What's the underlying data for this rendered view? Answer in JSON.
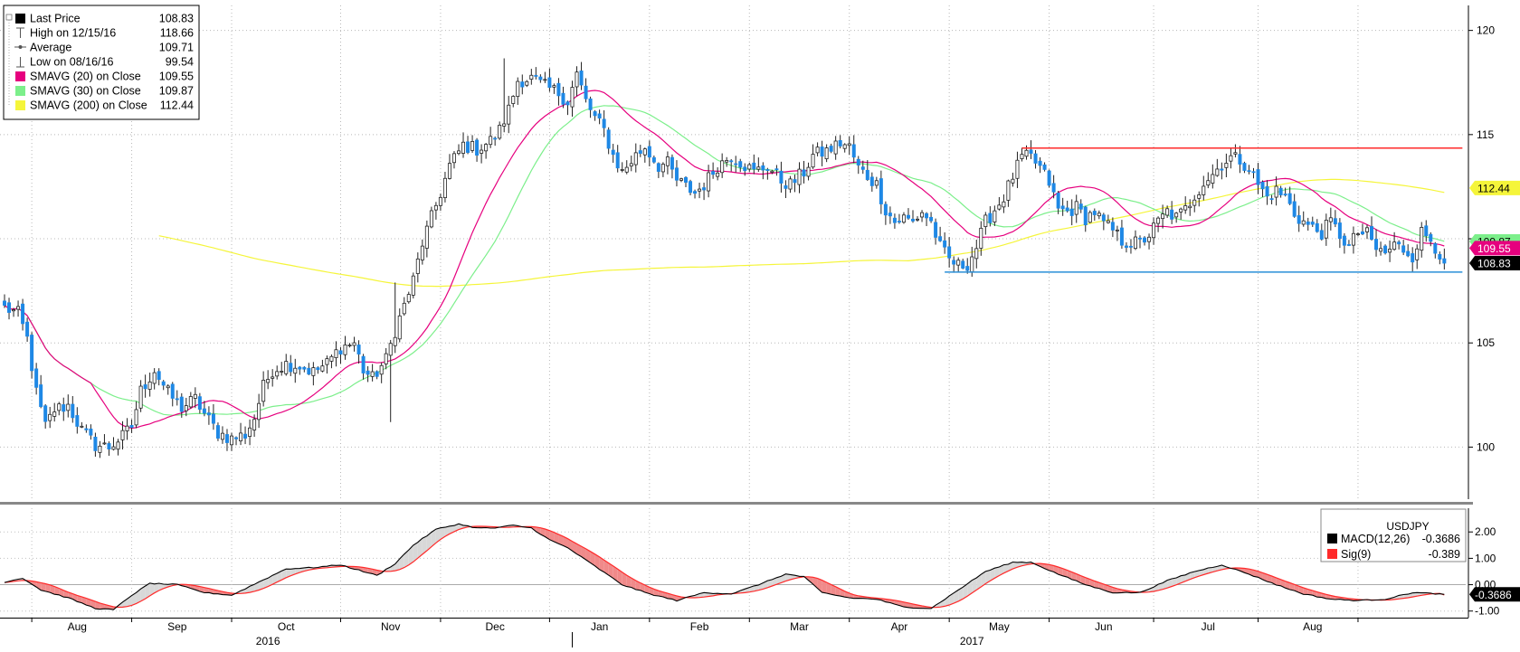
{
  "chart_data": [
    {
      "type": "candlestick",
      "title": "",
      "ylim": [
        97.5,
        121.2
      ],
      "y_ticks": [
        100,
        105,
        110,
        115,
        120
      ],
      "legend": {
        "placement": "top-left",
        "entries": [
          {
            "label": "Last Price",
            "value": "108.83",
            "color": "#000000",
            "marker": "square"
          },
          {
            "label": "High on 12/15/16",
            "value": "118.66",
            "color": "#555555",
            "marker": "high-tick"
          },
          {
            "label": "Average",
            "value": "109.71",
            "color": "#555555",
            "marker": "avg-line"
          },
          {
            "label": "Low on 08/16/16",
            "value": "99.54",
            "color": "#555555",
            "marker": "low-tick"
          },
          {
            "label": "SMAVG (20) on Close",
            "value": "109.55",
            "color": "#e6007e",
            "marker": "square"
          },
          {
            "label": "SMAVG (30) on Close",
            "value": "109.87",
            "color": "#7cef8b",
            "marker": "square"
          },
          {
            "label": "SMAVG (200) on Close",
            "value": "112.44",
            "color": "#f5f53a",
            "marker": "square"
          }
        ]
      },
      "right_labels": [
        {
          "text": "112.44",
          "value": 112.44,
          "color": "#f5f53a",
          "text_color": "#000000"
        },
        {
          "text": "109.87",
          "value": 109.87,
          "color": "#7cef8b",
          "text_color": "#000000"
        },
        {
          "text": "109.55",
          "value": 109.55,
          "color": "#e6007e",
          "text_color": "#ffffff"
        },
        {
          "text": "108.83",
          "value": 108.83,
          "color": "#000000",
          "text_color": "#ffffff"
        }
      ],
      "horizontal_lines": [
        {
          "start_index": 224,
          "end_index": 317,
          "value": 114.35,
          "color": "#ff2a2a"
        },
        {
          "start_index": 207,
          "end_index": 317,
          "value": 108.4,
          "color": "#2a8fd8"
        }
      ],
      "series": [
        {
          "kind": "ma",
          "period": 200,
          "color": "#f5f53a",
          "start_index": 34
        },
        {
          "kind": "ma",
          "period": 30,
          "color": "#7cef8b",
          "start_index": 0
        },
        {
          "kind": "ma",
          "period": 20,
          "color": "#e6007e",
          "start_index": 0
        }
      ],
      "anchors": [
        [
          0,
          106.7
        ],
        [
          3,
          106.4
        ],
        [
          5,
          105.2
        ],
        [
          7,
          102.6
        ],
        [
          9,
          101.0
        ],
        [
          11,
          101.8
        ],
        [
          14,
          102.0
        ],
        [
          17,
          100.8
        ],
        [
          20,
          100.1
        ],
        [
          23,
          100.0
        ],
        [
          26,
          100.5
        ],
        [
          28,
          101.0
        ],
        [
          30,
          102.7
        ],
        [
          33,
          103.7
        ],
        [
          36,
          102.6
        ],
        [
          39,
          101.9
        ],
        [
          42,
          102.3
        ],
        [
          44,
          101.6
        ],
        [
          47,
          100.7
        ],
        [
          50,
          100.4
        ],
        [
          53,
          100.6
        ],
        [
          55,
          101.4
        ],
        [
          57,
          102.9
        ],
        [
          59,
          103.7
        ],
        [
          62,
          104.0
        ],
        [
          65,
          103.9
        ],
        [
          68,
          103.6
        ],
        [
          71,
          104.0
        ],
        [
          74,
          104.8
        ],
        [
          77,
          105.0
        ],
        [
          79,
          103.7
        ],
        [
          81,
          103.3
        ],
        [
          84,
          104.2
        ],
        [
          86,
          105.6
        ],
        [
          88,
          106.8
        ],
        [
          90,
          108.0
        ],
        [
          92,
          109.8
        ],
        [
          94,
          111.0
        ],
        [
          96,
          112.2
        ],
        [
          98,
          113.5
        ],
        [
          101,
          114.5
        ],
        [
          104,
          114.3
        ],
        [
          107,
          114.7
        ],
        [
          109,
          115.2
        ],
        [
          111,
          116.2
        ],
        [
          113,
          117.6
        ],
        [
          116,
          117.7
        ],
        [
          119,
          117.3
        ],
        [
          122,
          117.0
        ],
        [
          124,
          116.6
        ],
        [
          126,
          117.9
        ],
        [
          128,
          116.6
        ],
        [
          130,
          115.8
        ],
        [
          132,
          115.2
        ],
        [
          134,
          114.0
        ],
        [
          136,
          113.2
        ],
        [
          139,
          114.0
        ],
        [
          141,
          114.4
        ],
        [
          144,
          113.5
        ],
        [
          146,
          113.6
        ],
        [
          148,
          112.8
        ],
        [
          150,
          112.5
        ],
        [
          152,
          112.2
        ],
        [
          154,
          112.6
        ],
        [
          157,
          113.5
        ],
        [
          160,
          114.0
        ],
        [
          162,
          113.7
        ],
        [
          165,
          113.2
        ],
        [
          168,
          113.5
        ],
        [
          171,
          112.8
        ],
        [
          173,
          112.6
        ],
        [
          176,
          113.2
        ],
        [
          178,
          114.0
        ],
        [
          181,
          114.2
        ],
        [
          184,
          114.6
        ],
        [
          186,
          114.4
        ],
        [
          188,
          113.4
        ],
        [
          190,
          113.0
        ],
        [
          192,
          112.6
        ],
        [
          194,
          111.4
        ],
        [
          196,
          110.8
        ],
        [
          198,
          111.0
        ],
        [
          200,
          110.8
        ],
        [
          202,
          111.3
        ],
        [
          204,
          110.8
        ],
        [
          206,
          109.6
        ],
        [
          208,
          109.0
        ],
        [
          210,
          108.7
        ],
        [
          212,
          108.8
        ],
        [
          214,
          109.6
        ],
        [
          216,
          110.8
        ],
        [
          218,
          111.4
        ],
        [
          220,
          112.0
        ],
        [
          222,
          113.0
        ],
        [
          224,
          113.9
        ],
        [
          226,
          113.9
        ],
        [
          228,
          113.4
        ],
        [
          230,
          112.7
        ],
        [
          232,
          111.4
        ],
        [
          234,
          111.3
        ],
        [
          236,
          111.5
        ],
        [
          238,
          111.0
        ],
        [
          240,
          111.3
        ],
        [
          242,
          110.7
        ],
        [
          244,
          110.4
        ],
        [
          246,
          109.9
        ],
        [
          248,
          109.8
        ],
        [
          250,
          109.8
        ],
        [
          252,
          110.2
        ],
        [
          254,
          110.8
        ],
        [
          256,
          111.3
        ],
        [
          258,
          111.0
        ],
        [
          260,
          111.4
        ],
        [
          262,
          112.1
        ],
        [
          264,
          112.7
        ],
        [
          266,
          113.1
        ],
        [
          268,
          113.6
        ],
        [
          270,
          113.9
        ],
        [
          272,
          113.8
        ],
        [
          274,
          113.4
        ],
        [
          276,
          112.6
        ],
        [
          278,
          112.0
        ],
        [
          280,
          112.3
        ],
        [
          282,
          112.0
        ],
        [
          284,
          111.2
        ],
        [
          286,
          110.8
        ],
        [
          288,
          110.5
        ],
        [
          290,
          110.3
        ],
        [
          292,
          110.8
        ],
        [
          294,
          110.2
        ],
        [
          296,
          109.6
        ],
        [
          298,
          110.3
        ],
        [
          300,
          110.2
        ],
        [
          302,
          109.5
        ],
        [
          304,
          109.3
        ],
        [
          306,
          109.7
        ],
        [
          308,
          109.5
        ],
        [
          310,
          109.2
        ],
        [
          312,
          110.3
        ],
        [
          314,
          110.0
        ],
        [
          316,
          109.3
        ],
        [
          317,
          108.83
        ]
      ],
      "x_labels": [
        {
          "text": "Aug",
          "index": 16
        },
        {
          "text": "Sep",
          "index": 38
        },
        {
          "text": "Oct",
          "index": 62
        },
        {
          "text": "Nov",
          "index": 85
        },
        {
          "text": "Dec",
          "index": 108
        },
        {
          "text": "Jan",
          "index": 131
        },
        {
          "text": "Feb",
          "index": 153
        },
        {
          "text": "Mar",
          "index": 175
        },
        {
          "text": "Apr",
          "index": 197
        },
        {
          "text": "May",
          "index": 219
        },
        {
          "text": "Jun",
          "index": 242
        },
        {
          "text": "Jul",
          "index": 265
        },
        {
          "text": "Aug",
          "index": 288
        }
      ],
      "year_labels": [
        {
          "text": "2016",
          "index": 58
        },
        {
          "text": "2017",
          "index": 213
        }
      ],
      "month_separators": [
        6,
        28,
        50,
        74,
        96,
        120,
        142,
        164,
        186,
        208,
        230,
        253,
        276,
        298
      ]
    },
    {
      "type": "line",
      "title": "",
      "ylim": [
        -1.25,
        2.9
      ],
      "y_ticks": [
        {
          "value": 2.0,
          "label": "2.00"
        },
        {
          "value": 1.0,
          "label": "1.00"
        },
        {
          "value": 0.0,
          "label": "0.00"
        },
        {
          "value": -1.0,
          "label": "-1.00"
        }
      ],
      "zero_line": 0,
      "legend": {
        "placement": "top-right",
        "title": "USDJPY",
        "entries": [
          {
            "label": "MACD(12,26)",
            "value": "-0.3686",
            "color": "#000000"
          },
          {
            "label": "Sig(9)",
            "value": "-0.389",
            "color": "#ff2a2a"
          }
        ]
      },
      "right_label": {
        "text": "-0.3686",
        "value": -0.3686,
        "color": "#000000",
        "text_color": "#ffffff"
      },
      "fill_above": "#d8d8d8",
      "fill_below": "#f08a8a",
      "macd_anchors": [
        [
          0,
          0.1
        ],
        [
          4,
          0.25
        ],
        [
          8,
          -0.2
        ],
        [
          14,
          -0.5
        ],
        [
          20,
          -0.9
        ],
        [
          24,
          -0.95
        ],
        [
          28,
          -0.4
        ],
        [
          32,
          0.05
        ],
        [
          38,
          0.0
        ],
        [
          44,
          -0.3
        ],
        [
          50,
          -0.4
        ],
        [
          56,
          0.1
        ],
        [
          62,
          0.6
        ],
        [
          68,
          0.65
        ],
        [
          74,
          0.75
        ],
        [
          78,
          0.55
        ],
        [
          82,
          0.35
        ],
        [
          86,
          0.8
        ],
        [
          90,
          1.5
        ],
        [
          95,
          2.1
        ],
        [
          100,
          2.3
        ],
        [
          104,
          2.15
        ],
        [
          108,
          2.15
        ],
        [
          112,
          2.25
        ],
        [
          116,
          2.15
        ],
        [
          120,
          1.7
        ],
        [
          124,
          1.4
        ],
        [
          130,
          0.7
        ],
        [
          136,
          0.0
        ],
        [
          142,
          -0.35
        ],
        [
          148,
          -0.6
        ],
        [
          154,
          -0.3
        ],
        [
          160,
          -0.35
        ],
        [
          166,
          0.0
        ],
        [
          172,
          0.4
        ],
        [
          176,
          0.3
        ],
        [
          180,
          -0.3
        ],
        [
          186,
          -0.5
        ],
        [
          192,
          -0.55
        ],
        [
          198,
          -0.85
        ],
        [
          204,
          -0.9
        ],
        [
          210,
          -0.2
        ],
        [
          216,
          0.5
        ],
        [
          222,
          0.85
        ],
        [
          226,
          0.85
        ],
        [
          232,
          0.4
        ],
        [
          238,
          0.0
        ],
        [
          244,
          -0.3
        ],
        [
          250,
          -0.3
        ],
        [
          256,
          0.15
        ],
        [
          262,
          0.5
        ],
        [
          268,
          0.75
        ],
        [
          274,
          0.4
        ],
        [
          280,
          0.0
        ],
        [
          286,
          -0.35
        ],
        [
          292,
          -0.55
        ],
        [
          298,
          -0.6
        ],
        [
          304,
          -0.55
        ],
        [
          310,
          -0.3
        ],
        [
          314,
          -0.33
        ],
        [
          317,
          -0.3686
        ]
      ],
      "signal_lag": 4,
      "x_labels_ref": "shared"
    }
  ]
}
